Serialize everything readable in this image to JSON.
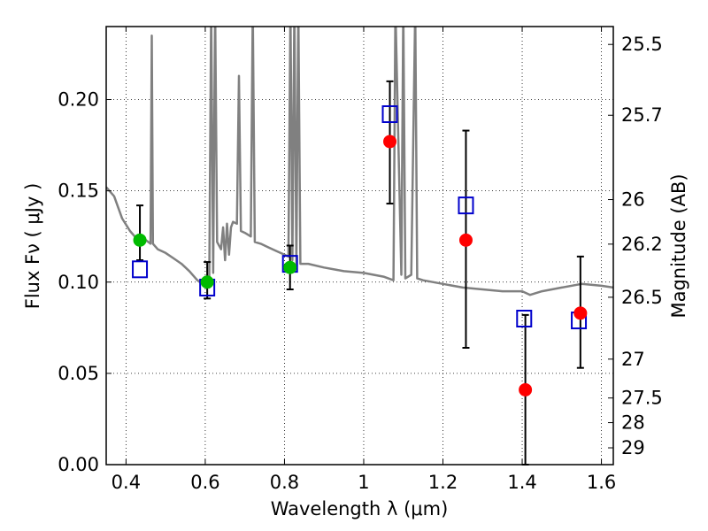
{
  "chart_data": {
    "type": "scatter",
    "xlabel": "Wavelength  λ (μm)",
    "ylabel": "Flux  Fν  ( μJy )",
    "y2label": "Magnitude (AB)",
    "xlim": [
      0.35,
      1.63
    ],
    "ylim": [
      0.0,
      0.24
    ],
    "grid": true,
    "x_ticks": [
      0.4,
      0.6,
      0.8,
      1.0,
      1.2,
      1.4,
      1.6
    ],
    "x_tick_labels": [
      "0.4",
      "0.6",
      "0.8",
      "1",
      "1.2",
      "1.4",
      "1.6"
    ],
    "y_ticks": [
      0.0,
      0.05,
      0.1,
      0.15,
      0.2
    ],
    "y_tick_labels": [
      "0.00",
      "0.05",
      "0.10",
      "0.15",
      "0.20"
    ],
    "y2_ticks": [
      {
        "label": "25.5",
        "flux": 0.2302
      },
      {
        "label": "25.7",
        "flux": 0.1914
      },
      {
        "label": "26",
        "flux": 0.1452
      },
      {
        "label": "26.2",
        "flux": 0.1208
      },
      {
        "label": "26.5",
        "flux": 0.0917
      },
      {
        "label": "27",
        "flux": 0.0578
      },
      {
        "label": "27.5",
        "flux": 0.0365
      },
      {
        "label": "28",
        "flux": 0.023
      },
      {
        "label": "29",
        "flux": 0.0092
      }
    ],
    "series": [
      {
        "marker": "line",
        "color": "#808080",
        "points": [
          [
            0.35,
            0.152
          ],
          [
            0.37,
            0.147
          ],
          [
            0.39,
            0.135
          ],
          [
            0.41,
            0.128
          ],
          [
            0.43,
            0.123
          ],
          [
            0.45,
            0.123
          ],
          [
            0.462,
            0.121
          ],
          [
            0.465,
            0.235
          ],
          [
            0.468,
            0.121
          ],
          [
            0.48,
            0.118
          ],
          [
            0.5,
            0.116
          ],
          [
            0.52,
            0.113
          ],
          [
            0.54,
            0.11
          ],
          [
            0.56,
            0.106
          ],
          [
            0.58,
            0.101
          ],
          [
            0.6,
            0.098
          ],
          [
            0.61,
            0.097
          ],
          [
            0.615,
            0.25
          ],
          [
            0.62,
            0.105
          ],
          [
            0.625,
            0.25
          ],
          [
            0.63,
            0.122
          ],
          [
            0.64,
            0.118
          ],
          [
            0.645,
            0.13
          ],
          [
            0.65,
            0.112
          ],
          [
            0.655,
            0.132
          ],
          [
            0.66,
            0.115
          ],
          [
            0.665,
            0.13
          ],
          [
            0.67,
            0.133
          ],
          [
            0.68,
            0.132
          ],
          [
            0.685,
            0.213
          ],
          [
            0.69,
            0.128
          ],
          [
            0.7,
            0.127
          ],
          [
            0.715,
            0.125
          ],
          [
            0.72,
            0.25
          ],
          [
            0.725,
            0.122
          ],
          [
            0.74,
            0.121
          ],
          [
            0.76,
            0.119
          ],
          [
            0.78,
            0.117
          ],
          [
            0.8,
            0.115
          ],
          [
            0.81,
            0.114
          ],
          [
            0.815,
            0.25
          ],
          [
            0.82,
            0.112
          ],
          [
            0.825,
            0.25
          ],
          [
            0.83,
            0.11
          ],
          [
            0.835,
            0.25
          ],
          [
            0.84,
            0.11
          ],
          [
            0.86,
            0.11
          ],
          [
            0.9,
            0.108
          ],
          [
            0.95,
            0.106
          ],
          [
            1.0,
            0.105
          ],
          [
            1.05,
            0.103
          ],
          [
            1.075,
            0.101
          ],
          [
            1.08,
            0.25
          ],
          [
            1.095,
            0.104
          ],
          [
            1.1,
            0.25
          ],
          [
            1.105,
            0.102
          ],
          [
            1.12,
            0.104
          ],
          [
            1.13,
            0.25
          ],
          [
            1.135,
            0.102
          ],
          [
            1.15,
            0.101
          ],
          [
            1.2,
            0.099
          ],
          [
            1.25,
            0.097
          ],
          [
            1.3,
            0.096
          ],
          [
            1.35,
            0.095
          ],
          [
            1.4,
            0.095
          ],
          [
            1.42,
            0.093
          ],
          [
            1.45,
            0.095
          ],
          [
            1.5,
            0.097
          ],
          [
            1.55,
            0.099
          ],
          [
            1.6,
            0.098
          ],
          [
            1.63,
            0.097
          ]
        ]
      },
      {
        "marker": "square",
        "color": "#0000cc",
        "x": [
          0.435,
          0.605,
          0.814,
          1.066,
          1.258,
          1.405,
          1.543
        ],
        "y": [
          0.107,
          0.097,
          0.11,
          0.192,
          0.142,
          0.08,
          0.079
        ]
      },
      {
        "marker": "circle",
        "color": "#00bb00",
        "x": [
          0.435,
          0.605,
          0.814
        ],
        "y": [
          0.123,
          0.1,
          0.108
        ],
        "yerr_low": [
          0.112,
          0.091,
          0.096
        ],
        "yerr_high": [
          0.142,
          0.111,
          0.12
        ]
      },
      {
        "marker": "circle",
        "color": "#ff0000",
        "x": [
          1.066,
          1.258,
          1.408,
          1.547
        ],
        "y": [
          0.177,
          0.123,
          0.041,
          0.083
        ],
        "yerr_low": [
          0.143,
          0.064,
          0.0,
          0.053
        ],
        "yerr_high": [
          0.21,
          0.183,
          0.082,
          0.114
        ]
      }
    ]
  }
}
